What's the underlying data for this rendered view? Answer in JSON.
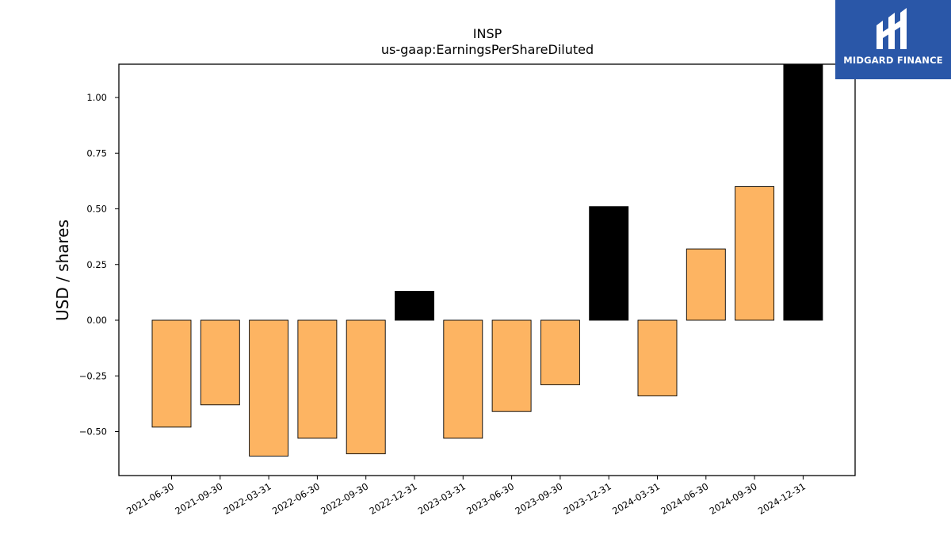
{
  "chart_data": {
    "type": "bar",
    "title": "INSP",
    "subtitle": "us-gaap:EarningsPerShareDiluted",
    "xlabel": "",
    "ylabel": "USD / shares",
    "categories": [
      "2021-06-30",
      "2021-09-30",
      "2022-03-31",
      "2022-06-30",
      "2022-09-30",
      "2022-12-31",
      "2023-03-31",
      "2023-06-30",
      "2023-09-30",
      "2023-12-31",
      "2024-03-31",
      "2024-06-30",
      "2024-09-30",
      "2024-12-31"
    ],
    "values": [
      -0.48,
      -0.38,
      -0.61,
      -0.53,
      -0.6,
      0.13,
      -0.53,
      -0.41,
      -0.29,
      0.51,
      -0.34,
      0.32,
      0.6,
      1.15
    ],
    "highlight": [
      false,
      false,
      false,
      false,
      false,
      true,
      false,
      false,
      false,
      true,
      false,
      false,
      false,
      true
    ],
    "colors": {
      "default": "#fdb462",
      "highlight": "#000000",
      "edge": "#000000"
    },
    "ylim": [
      -0.7,
      1.15
    ],
    "yticks": [
      -0.5,
      -0.25,
      0.0,
      0.25,
      0.5,
      0.75,
      1.0
    ],
    "ytick_labels": [
      "−0.50",
      "−0.25",
      "0.00",
      "0.25",
      "0.50",
      "0.75",
      "1.00"
    ],
    "grid": false,
    "legend": "none"
  },
  "logo": {
    "text": "MIDGARD FINANCE"
  }
}
